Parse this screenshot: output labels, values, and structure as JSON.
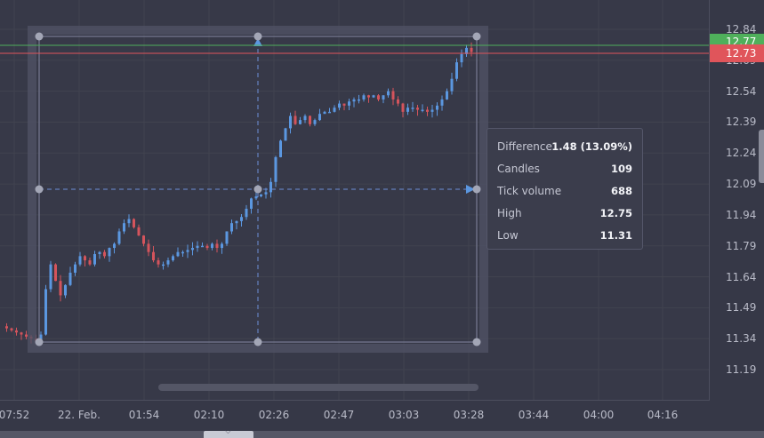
{
  "price_axis": {
    "labels": [
      "12.84",
      "12.69",
      "12.54",
      "12.39",
      "12.24",
      "12.09",
      "11.94",
      "11.79",
      "11.64",
      "11.49",
      "11.34",
      "11.19"
    ],
    "ask_badge": "12.77",
    "bid_badge": "12.73",
    "ask_color": "#4fb05b",
    "bid_color": "#e0555b"
  },
  "time_axis": {
    "labels": [
      "07:52",
      "22. Feb.",
      "01:54",
      "02:10",
      "02:26",
      "02:47",
      "03:03",
      "03:28",
      "03:44",
      "04:00",
      "04:16"
    ]
  },
  "measurement": {
    "difference_label": "Difference",
    "difference_value": "1.48 (13.09%)",
    "candles_label": "Candles",
    "candles_value": "109",
    "volume_label": "Tick volume",
    "volume_value": "688",
    "high_label": "High",
    "high_value": "12.75",
    "low_label": "Low",
    "low_value": "11.31"
  },
  "colors": {
    "up": "#5b97e0",
    "down": "#d4545c",
    "background": "#373948",
    "selection": "#6b6e84"
  },
  "icons": {
    "collapse": "chevron-down-icon",
    "axis_toggle": "chevron-left-icon"
  },
  "chart_data": {
    "type": "candlestick",
    "candle_count": 109,
    "x_tick_labels": [
      "07:52",
      "22. Feb.",
      "01:54",
      "02:10",
      "02:26",
      "02:47",
      "03:03",
      "03:28",
      "03:44",
      "04:00",
      "04:16"
    ],
    "y_tick_labels": [
      "12.84",
      "12.69",
      "12.54",
      "12.39",
      "12.24",
      "12.09",
      "11.94",
      "11.79",
      "11.64",
      "11.49",
      "11.34",
      "11.19"
    ],
    "ylim": [
      11.1,
      12.95
    ],
    "close_path": [
      11.4,
      11.39,
      11.38,
      11.37,
      11.36,
      11.35,
      11.34,
      11.33,
      11.36,
      11.58,
      11.7,
      11.62,
      11.55,
      11.6,
      11.66,
      11.7,
      11.74,
      11.72,
      11.7,
      11.75,
      11.76,
      11.74,
      11.78,
      11.8,
      11.86,
      11.9,
      11.92,
      11.88,
      11.84,
      11.8,
      11.76,
      11.72,
      11.7,
      11.7,
      11.72,
      11.74,
      11.76,
      11.76,
      11.77,
      11.78,
      11.79,
      11.79,
      11.78,
      11.8,
      11.78,
      11.8,
      11.86,
      11.9,
      11.91,
      11.93,
      11.97,
      12.02,
      12.03,
      12.04,
      12.05,
      12.1,
      12.22,
      12.3,
      12.36,
      12.42,
      12.38,
      12.4,
      12.42,
      12.38,
      12.4,
      12.43,
      12.44,
      12.44,
      12.46,
      12.48,
      12.47,
      12.49,
      12.5,
      12.5,
      12.52,
      12.51,
      12.52,
      12.5,
      12.52,
      12.54,
      12.5,
      12.48,
      12.44,
      12.46,
      12.46,
      12.45,
      12.45,
      12.44,
      12.45,
      12.47,
      12.5,
      12.54,
      12.6,
      12.68,
      12.72,
      12.75,
      12.73
    ],
    "selection": {
      "from": "07:52",
      "to": "03:28",
      "high": 12.75,
      "low": 11.31
    },
    "ask": 12.77,
    "bid": 12.73
  }
}
